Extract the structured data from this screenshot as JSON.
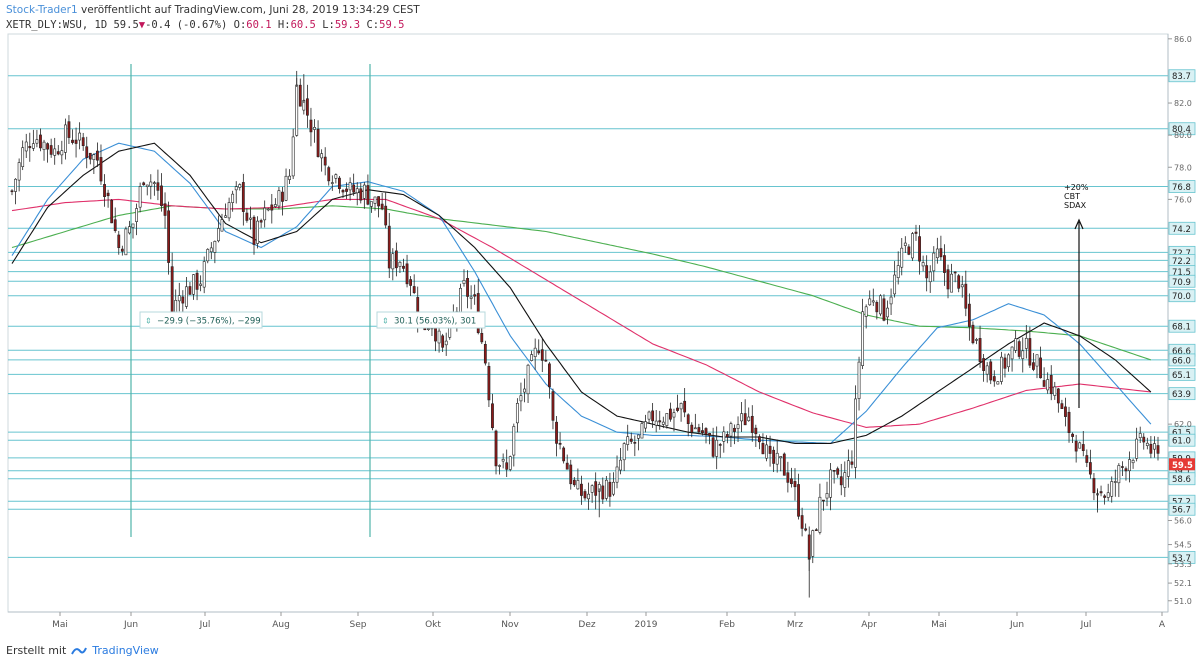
{
  "header": {
    "author": "Stock-Trader1",
    "published": "veröffentlicht auf TradingView.com, Juni 28, 2019 13:34:29 CEST",
    "symbol": "XETR_DLY:WSU, 1D",
    "last": "59.5",
    "change": "-0.4 (-0.67%)",
    "o_label": "O:",
    "o": "60.1",
    "h_label": "H:",
    "h": "60.5",
    "l_label": "L:",
    "l": "59.3",
    "c_label": "C:",
    "c": "59.5"
  },
  "footer": {
    "created": "Erstellt mit",
    "brand": "TradingView"
  },
  "colors": {
    "candle_up": "#ffffff",
    "candle_down": "#8b1a1a",
    "candle_outline": "#222222",
    "ma_black": "#111111",
    "ma_blue": "#3a8fd6",
    "ma_red": "#e0306a",
    "ma_green": "#4caf50",
    "hline": "#67c4cf",
    "price_badge": "#e53935"
  },
  "chart_data": {
    "type": "candlestick",
    "y_ticks": [
      "86.0",
      "83.7",
      "82.0",
      "80.4",
      "80.0",
      "78.0",
      "76.8",
      "76.0",
      "74.2",
      "72.7",
      "72.2",
      "71.5",
      "70.9",
      "70.0",
      "68.1",
      "66.6",
      "66.0",
      "65.1",
      "63.9",
      "62.0",
      "61.5",
      "61.0",
      "59.9",
      "59.1",
      "58.6",
      "57.2",
      "56.7",
      "56.0",
      "54.5",
      "53.7",
      "53.3",
      "52.1",
      "51.0"
    ],
    "ylim": [
      50.3,
      86.3
    ],
    "x_labels": [
      "Mai",
      "Jun",
      "Jul",
      "Aug",
      "Sep",
      "Okt",
      "Nov",
      "Dez",
      "2019",
      "Feb",
      "Mrz",
      "Apr",
      "Mai",
      "Jun",
      "Jul",
      "A"
    ],
    "levels": [
      83.7,
      80.4,
      76.8,
      74.2,
      72.7,
      72.2,
      71.5,
      70.9,
      70.0,
      68.1,
      66.6,
      66.0,
      65.1,
      63.9,
      61.5,
      61.0,
      59.9,
      59.1,
      58.6,
      57.2,
      56.7,
      53.7
    ],
    "level_labels": [
      "83.7",
      "80.4",
      "76.8",
      "74.2",
      "72.7",
      "72.2",
      "71.5",
      "70.9",
      "70.0",
      "68.1",
      "66.6",
      "66.0",
      "65.1",
      "63.9",
      "61.5",
      "61.0",
      "59.9",
      "59.1",
      "58.6",
      "57.2",
      "56.7",
      "53.7"
    ],
    "current_price": "59.5",
    "annotations": {
      "drop": "−29.9 (−35.76%), −299",
      "rise": "30.1 (56.03%), 301",
      "target_line1": "+20%",
      "target_line2": "CBT",
      "target_line3": "SDAX"
    },
    "series_anchors": {
      "price": [
        [
          0,
          76.5
        ],
        [
          3,
          79
        ],
        [
          6,
          80
        ],
        [
          9,
          79.5
        ],
        [
          12,
          79
        ],
        [
          15,
          80
        ],
        [
          18,
          79.8
        ],
        [
          21,
          79
        ],
        [
          24,
          78.5
        ],
        [
          27,
          76
        ],
        [
          30,
          73
        ],
        [
          34,
          74.5
        ],
        [
          37,
          77.5
        ],
        [
          40,
          77
        ],
        [
          43,
          75
        ],
        [
          45,
          69
        ],
        [
          47,
          70
        ],
        [
          50,
          70.5
        ],
        [
          53,
          71
        ],
        [
          56,
          73
        ],
        [
          60,
          75.5
        ],
        [
          64,
          76.5
        ],
        [
          68,
          73.5
        ],
        [
          71,
          75
        ],
        [
          75,
          76
        ],
        [
          78,
          77.5
        ],
        [
          80,
          83
        ],
        [
          82,
          82
        ],
        [
          85,
          80
        ],
        [
          88,
          78
        ],
        [
          91,
          77.5
        ],
        [
          95,
          76.5
        ],
        [
          99,
          76.5
        ],
        [
          101,
          76
        ],
        [
          104,
          75.5
        ],
        [
          106,
          72
        ],
        [
          109,
          72.3
        ],
        [
          112,
          71
        ],
        [
          115,
          68
        ],
        [
          118,
          68.5
        ],
        [
          121,
          66.5
        ],
        [
          124,
          68.5
        ],
        [
          127,
          70.5
        ],
        [
          130,
          69.5
        ],
        [
          133,
          66
        ],
        [
          136,
          60
        ],
        [
          139,
          59
        ],
        [
          142,
          63
        ],
        [
          145,
          65
        ],
        [
          148,
          67
        ],
        [
          150,
          66
        ],
        [
          152,
          62
        ],
        [
          155,
          60
        ],
        [
          158,
          58
        ],
        [
          161,
          57.5
        ],
        [
          165,
          58
        ],
        [
          169,
          58
        ],
        [
          172,
          60.5
        ],
        [
          176,
          61
        ],
        [
          180,
          62.5
        ],
        [
          184,
          62.5
        ],
        [
          188,
          63
        ],
        [
          190,
          62
        ],
        [
          194,
          61.5
        ],
        [
          197,
          60.5
        ],
        [
          200,
          61
        ],
        [
          204,
          62
        ],
        [
          207,
          62.5
        ],
        [
          210,
          61.5
        ],
        [
          213,
          59.5
        ],
        [
          216,
          59.5
        ],
        [
          219,
          58.5
        ],
        [
          222,
          56
        ],
        [
          224,
          53.7
        ],
        [
          227,
          57
        ],
        [
          230,
          58.5
        ],
        [
          233,
          58.2
        ],
        [
          236,
          60
        ],
        [
          239,
          69
        ],
        [
          242,
          70
        ],
        [
          245,
          69
        ],
        [
          248,
          71
        ],
        [
          251,
          73
        ],
        [
          254,
          73.5
        ],
        [
          257,
          71
        ],
        [
          260,
          72.5
        ],
        [
          263,
          71
        ],
        [
          266,
          71
        ],
        [
          269,
          68
        ],
        [
          272,
          66.5
        ],
        [
          275,
          65
        ],
        [
          278,
          65.5
        ],
        [
          281,
          66.5
        ],
        [
          284,
          67
        ],
        [
          287,
          66
        ],
        [
          290,
          65
        ],
        [
          293,
          64
        ],
        [
          296,
          62
        ],
        [
          299,
          61
        ],
        [
          302,
          59
        ],
        [
          305,
          58
        ],
        [
          308,
          57.5
        ],
        [
          311,
          59
        ],
        [
          314,
          60
        ],
        [
          318,
          61
        ],
        [
          322,
          59.8
        ]
      ],
      "ma_black": [
        [
          0,
          72
        ],
        [
          10,
          75.5
        ],
        [
          20,
          77.5
        ],
        [
          30,
          79
        ],
        [
          40,
          79.5
        ],
        [
          50,
          77.5
        ],
        [
          60,
          74.5
        ],
        [
          70,
          73.3
        ],
        [
          80,
          74
        ],
        [
          90,
          76
        ],
        [
          100,
          76.6
        ],
        [
          110,
          76.3
        ],
        [
          120,
          75
        ],
        [
          130,
          73
        ],
        [
          140,
          70.5
        ],
        [
          150,
          67
        ],
        [
          160,
          64
        ],
        [
          170,
          62.5
        ],
        [
          180,
          62
        ],
        [
          190,
          61.5
        ],
        [
          200,
          61.2
        ],
        [
          210,
          61.2
        ],
        [
          220,
          60.8
        ],
        [
          230,
          60.8
        ],
        [
          240,
          61.3
        ],
        [
          250,
          62.5
        ],
        [
          260,
          64
        ],
        [
          270,
          65.5
        ],
        [
          280,
          67
        ],
        [
          290,
          68.3
        ],
        [
          300,
          67.5
        ],
        [
          310,
          66
        ],
        [
          320,
          64
        ]
      ],
      "ma_blue": [
        [
          0,
          72.5
        ],
        [
          10,
          76
        ],
        [
          20,
          78.5
        ],
        [
          30,
          79.5
        ],
        [
          40,
          79
        ],
        [
          50,
          77
        ],
        [
          60,
          74
        ],
        [
          70,
          73
        ],
        [
          80,
          74.3
        ],
        [
          90,
          76.8
        ],
        [
          100,
          77.1
        ],
        [
          110,
          76.5
        ],
        [
          120,
          75
        ],
        [
          130,
          71.5
        ],
        [
          140,
          67.5
        ],
        [
          150,
          64.5
        ],
        [
          160,
          62.5
        ],
        [
          170,
          61.5
        ],
        [
          180,
          61.3
        ],
        [
          190,
          61.3
        ],
        [
          200,
          61.2
        ],
        [
          210,
          61
        ],
        [
          220,
          60.9
        ],
        [
          230,
          60.8
        ],
        [
          240,
          62.8
        ],
        [
          250,
          65.5
        ],
        [
          260,
          68
        ],
        [
          270,
          68.5
        ],
        [
          280,
          69.5
        ],
        [
          290,
          68.8
        ],
        [
          300,
          67
        ],
        [
          310,
          64.5
        ],
        [
          320,
          62
        ]
      ],
      "ma_red": [
        [
          0,
          75.3
        ],
        [
          15,
          75.8
        ],
        [
          30,
          76
        ],
        [
          45,
          75.6
        ],
        [
          60,
          75.4
        ],
        [
          75,
          75.5
        ],
        [
          90,
          76
        ],
        [
          105,
          76
        ],
        [
          120,
          74.8
        ],
        [
          135,
          73
        ],
        [
          150,
          71
        ],
        [
          165,
          69
        ],
        [
          180,
          67
        ],
        [
          195,
          65.7
        ],
        [
          210,
          64
        ],
        [
          225,
          62.7
        ],
        [
          240,
          61.8
        ],
        [
          255,
          62
        ],
        [
          270,
          63
        ],
        [
          285,
          64.1
        ],
        [
          300,
          64.5
        ],
        [
          320,
          64
        ]
      ],
      "ma_green": [
        [
          0,
          73
        ],
        [
          15,
          74
        ],
        [
          30,
          75
        ],
        [
          45,
          75.6
        ],
        [
          60,
          75.4
        ],
        [
          75,
          75.4
        ],
        [
          90,
          75.6
        ],
        [
          105,
          75.4
        ],
        [
          120,
          74.8
        ],
        [
          135,
          74.4
        ],
        [
          150,
          74
        ],
        [
          165,
          73.3
        ],
        [
          180,
          72.6
        ],
        [
          195,
          71.8
        ],
        [
          210,
          70.9
        ],
        [
          225,
          70
        ],
        [
          240,
          68.8
        ],
        [
          255,
          68.1
        ],
        [
          270,
          68
        ],
        [
          285,
          67.8
        ],
        [
          300,
          67.5
        ],
        [
          320,
          66
        ]
      ]
    }
  }
}
